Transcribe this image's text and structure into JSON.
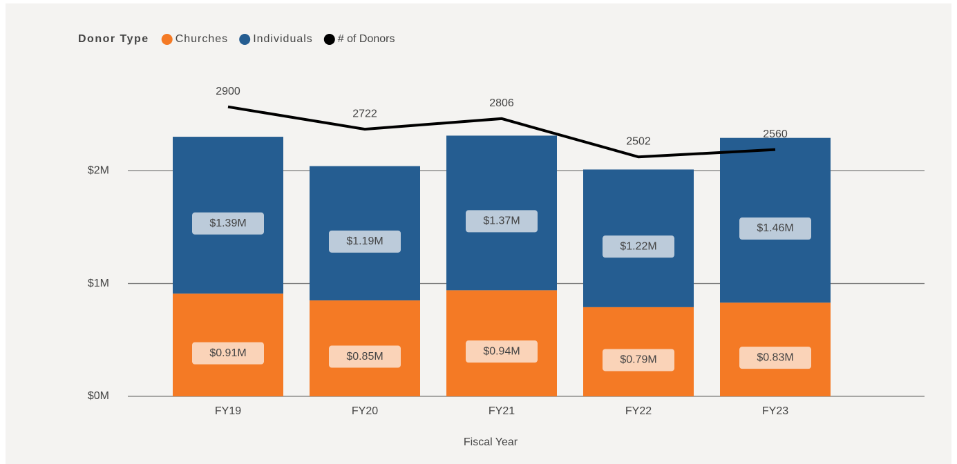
{
  "chart_data": {
    "type": "bar",
    "stacked": true,
    "legend_title": "Donor Type",
    "legend_position": "top-left",
    "x_label": "Fiscal Year",
    "categories": [
      "FY19",
      "FY20",
      "FY21",
      "FY22",
      "FY23"
    ],
    "series": [
      {
        "name": "Churches",
        "color": "#f47a25",
        "label_color": "#fad3b8",
        "values": [
          0.91,
          0.85,
          0.94,
          0.79,
          0.83
        ],
        "value_labels": [
          "$0.91M",
          "$0.85M",
          "$0.94M",
          "$0.79M",
          "$0.83M"
        ]
      },
      {
        "name": "Individuals",
        "color": "#255d91",
        "label_color": "#bccbda",
        "values": [
          1.39,
          1.19,
          1.37,
          1.22,
          1.46
        ],
        "value_labels": [
          "$1.39M",
          "$1.19M",
          "$1.37M",
          "$1.22M",
          "$1.46M"
        ]
      },
      {
        "name": "# of Donors",
        "type": "line",
        "axis": "y2",
        "color": "#000000",
        "values": [
          2900,
          2722,
          2806,
          2502,
          2560
        ]
      }
    ],
    "ylim": [
      0,
      2.9
    ],
    "yticks": [
      {
        "value": 0,
        "label": "$0M"
      },
      {
        "value": 1,
        "label": "$1M"
      },
      {
        "value": 2,
        "label": "$2M"
      }
    ],
    "y2lim": [
      600,
      3200
    ],
    "grid": true
  }
}
